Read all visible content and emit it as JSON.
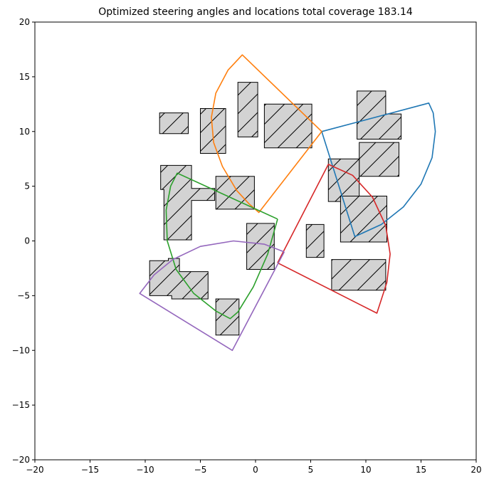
{
  "chart_data": {
    "type": "polygon-plot",
    "title": "Optimized steering angles and locations total coverage 183.14",
    "xlim": [
      -20,
      20
    ],
    "ylim": [
      -20,
      20
    ],
    "xticks": [
      -20,
      -15,
      -10,
      -5,
      0,
      5,
      10,
      15,
      20
    ],
    "yticks": [
      -20,
      -15,
      -10,
      -5,
      0,
      5,
      10,
      15,
      20
    ],
    "xtick_labels": [
      "−20",
      "−15",
      "−10",
      "−5",
      "0",
      "5",
      "10",
      "15",
      "20"
    ],
    "ytick_labels": [
      "−20",
      "−15",
      "−10",
      "−5",
      "0",
      "5",
      "10",
      "15",
      "20"
    ],
    "grid": false,
    "obstacle_fill": "#d3d3d3",
    "obstacle_edge": "#000000",
    "obstacles": [
      [
        [
          -8.7,
          9.8
        ],
        [
          -6.1,
          9.8
        ],
        [
          -6.1,
          11.7
        ],
        [
          -8.7,
          11.7
        ]
      ],
      [
        [
          -5.0,
          8.0
        ],
        [
          -2.7,
          8.0
        ],
        [
          -2.7,
          12.1
        ],
        [
          -5.0,
          12.1
        ]
      ],
      [
        [
          -1.6,
          9.5
        ],
        [
          0.2,
          9.5
        ],
        [
          0.2,
          14.5
        ],
        [
          -1.6,
          14.5
        ]
      ],
      [
        [
          0.8,
          8.5
        ],
        [
          5.1,
          8.5
        ],
        [
          5.1,
          12.5
        ],
        [
          0.8,
          12.5
        ]
      ],
      [
        [
          9.2,
          9.3
        ],
        [
          13.2,
          9.3
        ],
        [
          13.2,
          11.6
        ],
        [
          11.8,
          11.6
        ],
        [
          11.8,
          13.7
        ],
        [
          9.2,
          13.7
        ]
      ],
      [
        [
          9.4,
          5.9
        ],
        [
          13.0,
          5.9
        ],
        [
          13.0,
          9.0
        ],
        [
          9.4,
          9.0
        ]
      ],
      [
        [
          -8.6,
          4.7
        ],
        [
          -8.3,
          4.7
        ],
        [
          -8.3,
          0.1
        ],
        [
          -5.8,
          0.1
        ],
        [
          -5.8,
          3.7
        ],
        [
          -3.7,
          3.7
        ],
        [
          -3.7,
          4.8
        ],
        [
          -5.8,
          4.8
        ],
        [
          -5.8,
          6.9
        ],
        [
          -8.6,
          6.9
        ]
      ],
      [
        [
          -3.6,
          2.9
        ],
        [
          -0.1,
          2.9
        ],
        [
          -0.1,
          5.9
        ],
        [
          -3.6,
          5.9
        ]
      ],
      [
        [
          6.6,
          3.6
        ],
        [
          9.4,
          3.6
        ],
        [
          9.4,
          7.5
        ],
        [
          6.6,
          7.5
        ]
      ],
      [
        [
          7.7,
          -0.1
        ],
        [
          11.9,
          -0.1
        ],
        [
          11.9,
          4.1
        ],
        [
          7.7,
          4.1
        ]
      ],
      [
        [
          -7.9,
          -1.8
        ],
        [
          -7.9,
          -1.6
        ],
        [
          -6.9,
          -1.6
        ],
        [
          -6.9,
          -2.8
        ],
        [
          -4.3,
          -2.8
        ],
        [
          -4.3,
          -5.3
        ],
        [
          -7.6,
          -5.3
        ],
        [
          -7.6,
          -5.0
        ],
        [
          -9.6,
          -5.0
        ],
        [
          -9.6,
          -1.8
        ]
      ],
      [
        [
          -0.8,
          -2.6
        ],
        [
          1.7,
          -2.6
        ],
        [
          1.7,
          1.6
        ],
        [
          -0.8,
          1.6
        ]
      ],
      [
        [
          4.6,
          -1.5
        ],
        [
          6.2,
          -1.5
        ],
        [
          6.2,
          1.5
        ],
        [
          4.6,
          1.5
        ]
      ],
      [
        [
          6.9,
          -4.5
        ],
        [
          11.8,
          -4.5
        ],
        [
          11.8,
          -1.7
        ],
        [
          6.9,
          -1.7
        ]
      ],
      [
        [
          -3.6,
          -8.6
        ],
        [
          -1.5,
          -8.6
        ],
        [
          -1.5,
          -5.3
        ],
        [
          -3.6,
          -5.3
        ]
      ]
    ],
    "series": [
      {
        "color": "#1f77b4",
        "points": [
          [
            6.0,
            10.0
          ],
          [
            15.7,
            12.6
          ],
          [
            16.1,
            11.7
          ],
          [
            16.3,
            10.0
          ],
          [
            16.0,
            7.6
          ],
          [
            15.0,
            5.2
          ],
          [
            13.4,
            3.1
          ],
          [
            11.4,
            1.5
          ],
          [
            9.0,
            0.4
          ],
          [
            6.0,
            10.0
          ]
        ]
      },
      {
        "color": "#ff7f0e",
        "points": [
          [
            6.0,
            10.0
          ],
          [
            -1.2,
            17.0
          ],
          [
            -2.5,
            15.6
          ],
          [
            -3.6,
            13.5
          ],
          [
            -4.0,
            11.3
          ],
          [
            -3.8,
            9.0
          ],
          [
            -3.0,
            6.8
          ],
          [
            -1.7,
            4.6
          ],
          [
            -0.6,
            3.4
          ],
          [
            0.3,
            2.6
          ],
          [
            6.0,
            10.0
          ]
        ]
      },
      {
        "color": "#2ca02c",
        "points": [
          [
            2.0,
            2.0
          ],
          [
            -7.1,
            6.2
          ],
          [
            -7.7,
            5.0
          ],
          [
            -8.1,
            2.8
          ],
          [
            -8.0,
            0.0
          ],
          [
            -7.2,
            -2.6
          ],
          [
            -5.6,
            -4.8
          ],
          [
            -3.6,
            -6.4
          ],
          [
            -2.3,
            -7.1
          ],
          [
            -1.6,
            -6.5
          ],
          [
            -0.2,
            -4.2
          ],
          [
            1.1,
            -1.2
          ],
          [
            2.0,
            2.0
          ]
        ]
      },
      {
        "color": "#d62728",
        "points": [
          [
            2.0,
            -2.0
          ],
          [
            6.6,
            7.0
          ],
          [
            8.8,
            6.0
          ],
          [
            10.6,
            4.0
          ],
          [
            11.8,
            1.4
          ],
          [
            12.2,
            -1.2
          ],
          [
            11.9,
            -3.8
          ],
          [
            11.0,
            -6.6
          ],
          [
            2.0,
            -2.0
          ]
        ]
      },
      {
        "color": "#9467bd",
        "points": [
          [
            2.6,
            -1.0
          ],
          [
            0.8,
            -0.3
          ],
          [
            -2.0,
            0.0
          ],
          [
            -5.0,
            -0.5
          ],
          [
            -7.5,
            -1.7
          ],
          [
            -9.2,
            -3.1
          ],
          [
            -10.5,
            -4.8
          ],
          [
            -2.1,
            -10.0
          ],
          [
            2.6,
            -1.0
          ]
        ]
      }
    ]
  }
}
